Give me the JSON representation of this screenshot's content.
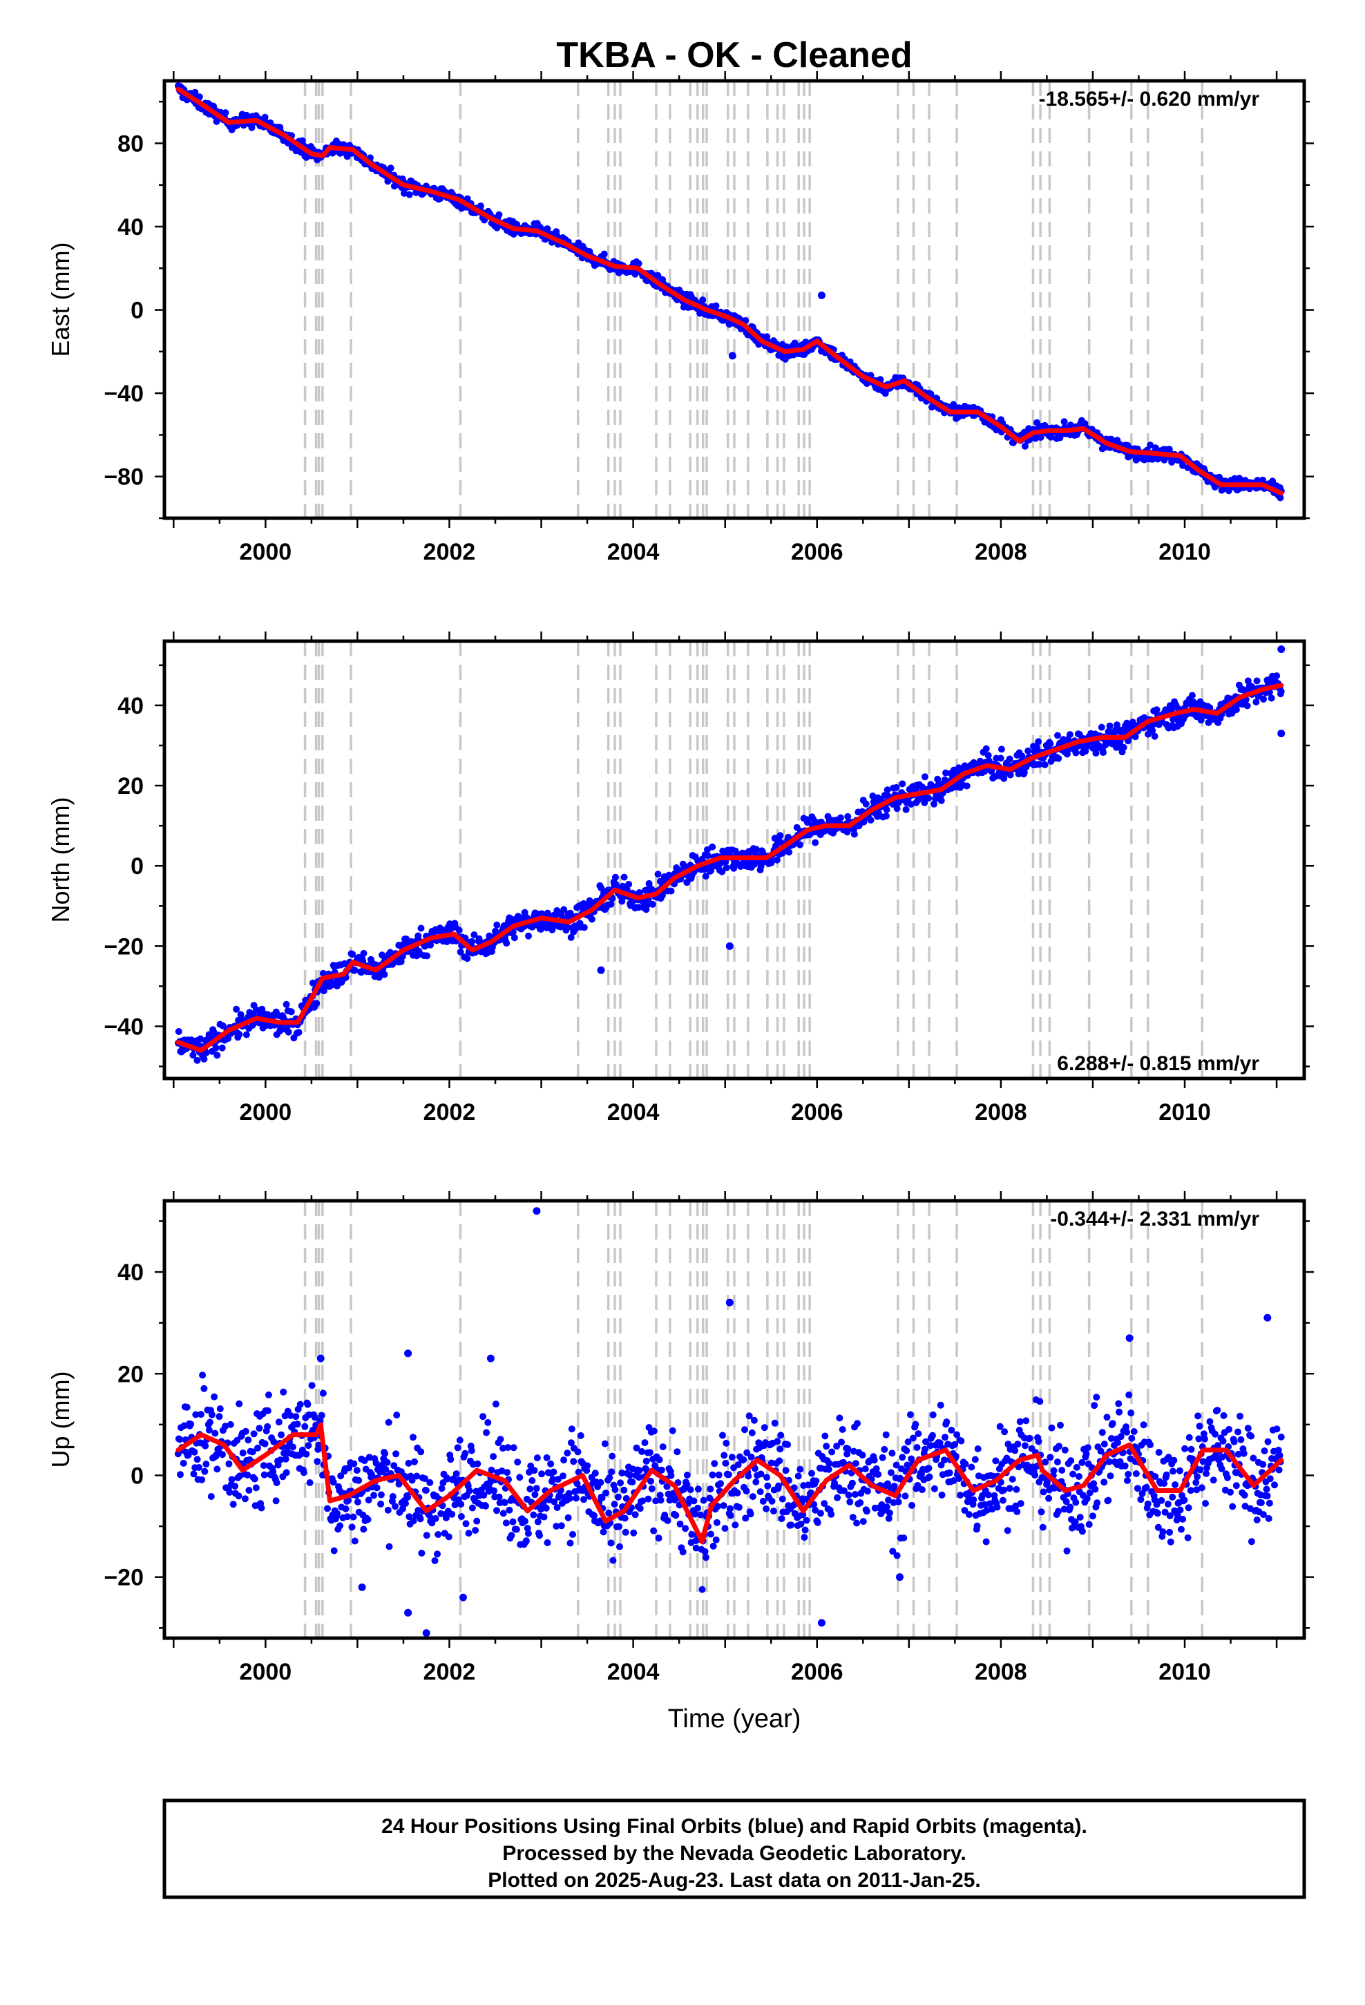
{
  "title": "TKBA  - OK - Cleaned",
  "xlabel": "Time (year)",
  "footer": {
    "line1": "24 Hour Positions Using Final Orbits (blue) and Rapid Orbits (magenta).",
    "line2": "Processed by the Nevada Geodetic Laboratory.",
    "line3": "Plotted on 2025-Aug-23. Last data on 2011-Jan-25."
  },
  "colors": {
    "points": "#0000ff",
    "model": "#ff0000",
    "steps": "#c8c8c8",
    "axes": "#000000"
  },
  "chart_data": [
    {
      "type": "scatter",
      "name": "east",
      "ylabel": "East (mm)",
      "rate_text": "-18.565+/- 0.620 mm/yr",
      "rate_position": "top-right",
      "xlim": [
        1998.9,
        2011.3
      ],
      "ylim": [
        -100,
        110
      ],
      "xticks": [
        2000,
        2002,
        2004,
        2006,
        2008,
        2010
      ],
      "yticks": [
        -80,
        -40,
        0,
        40,
        80
      ],
      "model_curve": [
        [
          1999.05,
          106
        ],
        [
          1999.3,
          99
        ],
        [
          1999.6,
          90
        ],
        [
          1999.9,
          91
        ],
        [
          2000.2,
          84
        ],
        [
          2000.5,
          75
        ],
        [
          2000.62,
          74
        ],
        [
          2000.7,
          78
        ],
        [
          2000.95,
          77
        ],
        [
          2001.15,
          70
        ],
        [
          2001.5,
          60
        ],
        [
          2001.8,
          57
        ],
        [
          2002.1,
          53
        ],
        [
          2002.45,
          44
        ],
        [
          2002.7,
          39
        ],
        [
          2002.95,
          38
        ],
        [
          2003.25,
          32
        ],
        [
          2003.5,
          26
        ],
        [
          2003.8,
          21
        ],
        [
          2004.05,
          20
        ],
        [
          2004.3,
          12
        ],
        [
          2004.55,
          5
        ],
        [
          2004.8,
          0
        ],
        [
          2005.0,
          -3
        ],
        [
          2005.2,
          -7
        ],
        [
          2005.4,
          -15
        ],
        [
          2005.65,
          -20
        ],
        [
          2005.85,
          -19
        ],
        [
          2006.0,
          -15
        ],
        [
          2006.2,
          -22
        ],
        [
          2006.5,
          -32
        ],
        [
          2006.75,
          -37
        ],
        [
          2006.95,
          -34
        ],
        [
          2007.2,
          -42
        ],
        [
          2007.45,
          -49
        ],
        [
          2007.75,
          -49
        ],
        [
          2008.0,
          -56
        ],
        [
          2008.2,
          -63
        ],
        [
          2008.35,
          -59
        ],
        [
          2008.5,
          -58
        ],
        [
          2008.7,
          -58
        ],
        [
          2008.9,
          -57
        ],
        [
          2009.15,
          -64
        ],
        [
          2009.4,
          -68
        ],
        [
          2009.7,
          -69
        ],
        [
          2009.95,
          -70
        ],
        [
          2010.15,
          -77
        ],
        [
          2010.4,
          -84
        ],
        [
          2010.7,
          -84
        ],
        [
          2010.85,
          -84
        ],
        [
          2011.05,
          -88
        ]
      ],
      "outliers": [
        [
          2005.08,
          -22
        ],
        [
          2006.05,
          7
        ]
      ]
    },
    {
      "type": "scatter",
      "name": "north",
      "ylabel": "North (mm)",
      "rate_text": "6.288+/- 0.815 mm/yr",
      "rate_position": "bottom-right",
      "xlim": [
        1998.9,
        2011.3
      ],
      "ylim": [
        -53,
        56
      ],
      "xticks": [
        2000,
        2002,
        2004,
        2006,
        2008,
        2010
      ],
      "yticks": [
        -40,
        -20,
        0,
        20,
        40
      ],
      "model_curve": [
        [
          1999.05,
          -44
        ],
        [
          1999.3,
          -46
        ],
        [
          1999.6,
          -41
        ],
        [
          1999.9,
          -38
        ],
        [
          2000.15,
          -39
        ],
        [
          2000.35,
          -39
        ],
        [
          2000.5,
          -33
        ],
        [
          2000.62,
          -28
        ],
        [
          2000.85,
          -27
        ],
        [
          2000.95,
          -24
        ],
        [
          2001.2,
          -26
        ],
        [
          2001.5,
          -21
        ],
        [
          2001.8,
          -18
        ],
        [
          2002.05,
          -17
        ],
        [
          2002.25,
          -21
        ],
        [
          2002.45,
          -19
        ],
        [
          2002.7,
          -15
        ],
        [
          2003.0,
          -13
        ],
        [
          2003.3,
          -14
        ],
        [
          2003.55,
          -11
        ],
        [
          2003.8,
          -6
        ],
        [
          2004.05,
          -8
        ],
        [
          2004.25,
          -7
        ],
        [
          2004.45,
          -3
        ],
        [
          2004.7,
          0
        ],
        [
          2004.95,
          2
        ],
        [
          2005.2,
          2
        ],
        [
          2005.45,
          2
        ],
        [
          2005.65,
          5
        ],
        [
          2005.9,
          9
        ],
        [
          2006.1,
          10
        ],
        [
          2006.35,
          10
        ],
        [
          2006.6,
          14
        ],
        [
          2006.85,
          17
        ],
        [
          2007.1,
          18
        ],
        [
          2007.35,
          19
        ],
        [
          2007.6,
          23
        ],
        [
          2007.85,
          25
        ],
        [
          2008.1,
          24
        ],
        [
          2008.35,
          27
        ],
        [
          2008.6,
          29
        ],
        [
          2008.85,
          31
        ],
        [
          2009.1,
          32
        ],
        [
          2009.35,
          32
        ],
        [
          2009.6,
          36
        ],
        [
          2009.9,
          38
        ],
        [
          2010.1,
          39
        ],
        [
          2010.35,
          38
        ],
        [
          2010.6,
          42
        ],
        [
          2010.85,
          44
        ],
        [
          2011.05,
          45
        ]
      ],
      "outliers": [
        [
          2005.05,
          -20
        ],
        [
          2003.65,
          -26
        ],
        [
          2011.05,
          33
        ],
        [
          2011.05,
          54
        ]
      ]
    },
    {
      "type": "scatter",
      "name": "up",
      "ylabel": "Up (mm)",
      "rate_text": "-0.344+/- 2.331 mm/yr",
      "rate_position": "top-right",
      "xlim": [
        1998.9,
        2011.3
      ],
      "ylim": [
        -32,
        54
      ],
      "xticks": [
        2000,
        2002,
        2004,
        2006,
        2008,
        2010
      ],
      "yticks": [
        -20,
        0,
        20,
        40
      ],
      "model_curve": [
        [
          1999.05,
          5
        ],
        [
          1999.3,
          8
        ],
        [
          1999.55,
          6
        ],
        [
          1999.75,
          1
        ],
        [
          2000.0,
          4
        ],
        [
          2000.3,
          8
        ],
        [
          2000.55,
          8
        ],
        [
          2000.6,
          10
        ],
        [
          2000.7,
          -5
        ],
        [
          2000.9,
          -4
        ],
        [
          2001.2,
          -1
        ],
        [
          2001.45,
          0
        ],
        [
          2001.75,
          -7
        ],
        [
          2002.0,
          -4
        ],
        [
          2002.3,
          1
        ],
        [
          2002.6,
          -1
        ],
        [
          2002.85,
          -7
        ],
        [
          2003.1,
          -3
        ],
        [
          2003.45,
          0
        ],
        [
          2003.7,
          -9
        ],
        [
          2003.9,
          -7
        ],
        [
          2004.2,
          1
        ],
        [
          2004.45,
          -2
        ],
        [
          2004.75,
          -13
        ],
        [
          2004.85,
          -6
        ],
        [
          2005.1,
          -1
        ],
        [
          2005.35,
          3
        ],
        [
          2005.6,
          0
        ],
        [
          2005.85,
          -7
        ],
        [
          2006.1,
          -1
        ],
        [
          2006.35,
          2
        ],
        [
          2006.6,
          -2
        ],
        [
          2006.85,
          -4
        ],
        [
          2007.1,
          3
        ],
        [
          2007.4,
          5
        ],
        [
          2007.7,
          -3
        ],
        [
          2007.95,
          -1
        ],
        [
          2008.2,
          3
        ],
        [
          2008.4,
          4
        ],
        [
          2008.45,
          1
        ],
        [
          2008.7,
          -3
        ],
        [
          2008.9,
          -2
        ],
        [
          2009.15,
          4
        ],
        [
          2009.4,
          6
        ],
        [
          2009.7,
          -3
        ],
        [
          2009.95,
          -3
        ],
        [
          2010.2,
          5
        ],
        [
          2010.45,
          5
        ],
        [
          2010.75,
          -2
        ],
        [
          2011.05,
          3
        ]
      ],
      "outliers": [
        [
          2002.95,
          52
        ],
        [
          2005.05,
          34
        ],
        [
          2000.6,
          23
        ],
        [
          2001.55,
          24
        ],
        [
          2002.45,
          23
        ],
        [
          2009.4,
          27
        ],
        [
          2010.9,
          31
        ],
        [
          2001.05,
          -22
        ],
        [
          2001.55,
          -27
        ],
        [
          2001.75,
          -31
        ],
        [
          2002.15,
          -24
        ],
        [
          2006.05,
          -29
        ],
        [
          2006.9,
          -20
        ]
      ]
    }
  ],
  "step_lines_x": [
    2000.43,
    2000.55,
    2000.58,
    2000.62,
    2000.93,
    2002.12,
    2003.4,
    2003.73,
    2003.8,
    2003.86,
    2004.25,
    2004.4,
    2004.62,
    2004.7,
    2004.76,
    2004.8,
    2005.03,
    2005.1,
    2005.25,
    2005.46,
    2005.57,
    2005.64,
    2005.8,
    2005.86,
    2005.92,
    2006.88,
    2007.05,
    2007.22,
    2007.52,
    2008.35,
    2008.43,
    2008.53,
    2008.96,
    2009.42,
    2009.6,
    2010.19
  ]
}
